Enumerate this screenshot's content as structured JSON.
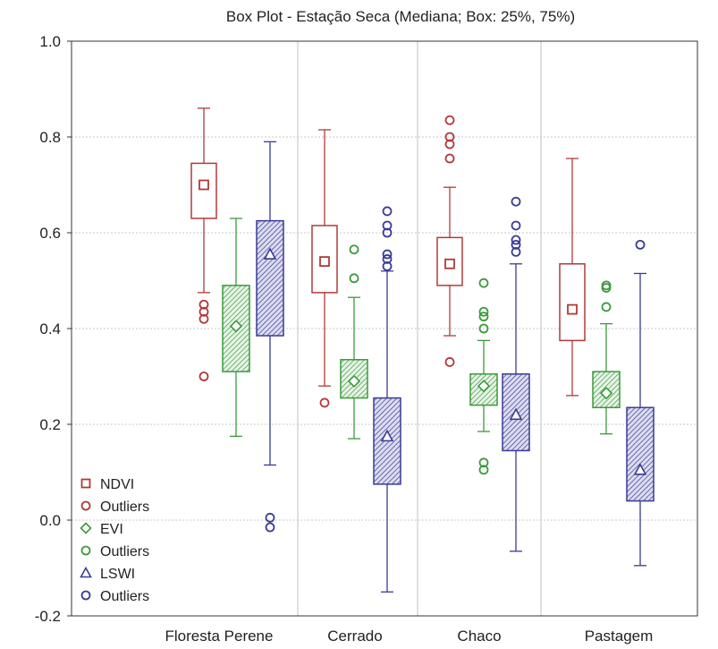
{
  "chart_data": {
    "type": "box",
    "title": "Box Plot - Estação Seca (Mediana; Box: 25%, 75%)",
    "xlabel": "",
    "ylabel": "",
    "ylim": [
      -0.2,
      1.0
    ],
    "yticks": [
      "1.0",
      "0.8",
      "0.6",
      "0.4",
      "0.2",
      "0.0",
      "-0.2"
    ],
    "ytick_values": [
      1.0,
      0.8,
      0.6,
      0.4,
      0.2,
      0.0,
      -0.2
    ],
    "grid": true,
    "legend_position": "bottom-left",
    "categories": [
      "Floresta Perene",
      "Cerrado",
      "Chaco",
      "Pastagem"
    ],
    "colors": {
      "NDVI": "#b03a3a",
      "EVI": "#3a9a3a",
      "LSWI": "#3a3a96"
    },
    "series": [
      {
        "name": "NDVI",
        "marker": "square",
        "boxes": [
          {
            "median": 0.7,
            "q1": 0.63,
            "q3": 0.745,
            "min": 0.475,
            "max": 0.86,
            "outliers": [
              0.45,
              0.435,
              0.42,
              0.3
            ]
          },
          {
            "median": 0.54,
            "q1": 0.475,
            "q3": 0.615,
            "min": 0.28,
            "max": 0.815,
            "outliers": [
              0.245
            ]
          },
          {
            "median": 0.535,
            "q1": 0.49,
            "q3": 0.59,
            "min": 0.385,
            "max": 0.695,
            "outliers": [
              0.835,
              0.8,
              0.785,
              0.755,
              0.33
            ]
          },
          {
            "median": 0.44,
            "q1": 0.375,
            "q3": 0.535,
            "min": 0.26,
            "max": 0.755,
            "outliers": []
          }
        ]
      },
      {
        "name": "EVI",
        "marker": "diamond",
        "boxes": [
          {
            "median": 0.405,
            "q1": 0.31,
            "q3": 0.49,
            "min": 0.175,
            "max": 0.63,
            "outliers": []
          },
          {
            "median": 0.29,
            "q1": 0.255,
            "q3": 0.335,
            "min": 0.17,
            "max": 0.465,
            "outliers": [
              0.565,
              0.505
            ]
          },
          {
            "median": 0.28,
            "q1": 0.24,
            "q3": 0.305,
            "min": 0.185,
            "max": 0.375,
            "outliers": [
              0.495,
              0.435,
              0.425,
              0.4,
              0.12,
              0.105
            ]
          },
          {
            "median": 0.265,
            "q1": 0.235,
            "q3": 0.31,
            "min": 0.18,
            "max": 0.41,
            "outliers": [
              0.49,
              0.485,
              0.445
            ]
          }
        ]
      },
      {
        "name": "LSWI",
        "marker": "triangle",
        "boxes": [
          {
            "median": 0.555,
            "q1": 0.385,
            "q3": 0.625,
            "min": 0.115,
            "max": 0.79,
            "outliers": [
              0.005,
              -0.015
            ]
          },
          {
            "median": 0.175,
            "q1": 0.075,
            "q3": 0.255,
            "min": -0.15,
            "max": 0.52,
            "outliers": [
              0.645,
              0.615,
              0.6,
              0.555,
              0.545,
              0.53
            ]
          },
          {
            "median": 0.22,
            "q1": 0.145,
            "q3": 0.305,
            "min": -0.065,
            "max": 0.535,
            "outliers": [
              0.665,
              0.615,
              0.585,
              0.575,
              0.56
            ]
          },
          {
            "median": 0.105,
            "q1": 0.04,
            "q3": 0.235,
            "min": -0.095,
            "max": 0.515,
            "outliers": [
              0.575
            ]
          }
        ]
      }
    ],
    "legend": [
      {
        "label": "NDVI",
        "marker": "square",
        "series": "NDVI"
      },
      {
        "label": "Outliers",
        "marker": "circle",
        "series": "NDVI"
      },
      {
        "label": "EVI",
        "marker": "diamond",
        "series": "EVI"
      },
      {
        "label": "Outliers",
        "marker": "circle",
        "series": "EVI"
      },
      {
        "label": "LSWI",
        "marker": "triangle",
        "series": "LSWI"
      },
      {
        "label": "Outliers",
        "marker": "circle",
        "series": "LSWI"
      }
    ]
  }
}
